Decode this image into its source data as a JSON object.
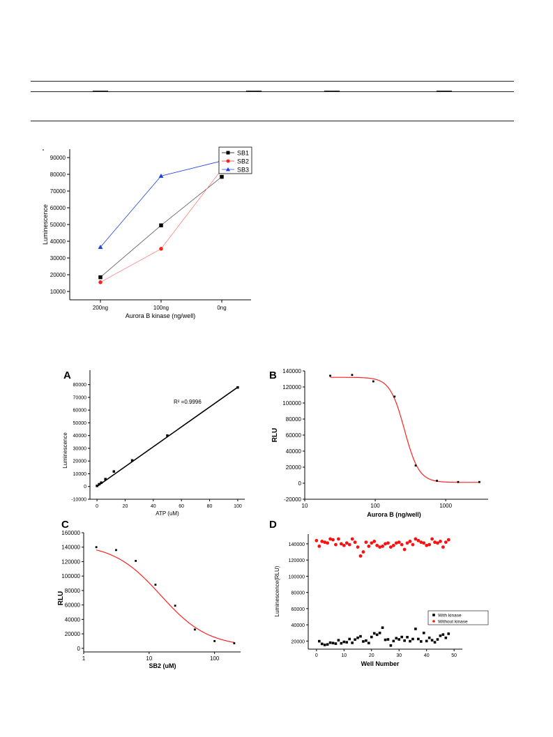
{
  "chart_data": [
    {
      "id": "aurora",
      "type": "line",
      "title": "",
      "xlabel": "Aurora B kinase (ng/well)",
      "ylabel": "Luminescence",
      "categories": [
        "200ng",
        "100ng",
        "0ng"
      ],
      "ylim": [
        5000,
        95000
      ],
      "yticks": [
        10000,
        20000,
        30000,
        40000,
        50000,
        60000,
        70000,
        80000,
        90000
      ],
      "legend": "top-right",
      "series": [
        {
          "name": "SB1",
          "color": "#000000",
          "marker": "square",
          "values": [
            18500,
            49500,
            78500
          ]
        },
        {
          "name": "SB2",
          "color": "#ff2020",
          "marker": "circle",
          "values": [
            15500,
            35500,
            83000
          ]
        },
        {
          "name": "SB3",
          "color": "#1f3fe6",
          "marker": "triangle",
          "values": [
            36500,
            79000,
            88000
          ]
        }
      ]
    },
    {
      "id": "A",
      "panel": "A",
      "type": "scatter",
      "xlabel": "ATP (uM)",
      "ylabel": "Luminescence",
      "xlim": [
        -5,
        105
      ],
      "ylim": [
        -10000,
        82000
      ],
      "xticks": [
        0,
        20,
        40,
        60,
        80,
        100
      ],
      "yticks": [
        -10000,
        0,
        10000,
        20000,
        30000,
        40000,
        50000,
        60000,
        70000,
        80000
      ],
      "annotation": "R² =0.9996",
      "fit": {
        "type": "linear",
        "x": [
          0,
          100
        ],
        "y": [
          0,
          78000
        ]
      },
      "points": {
        "x": [
          0,
          1.5,
          3,
          6,
          12,
          25,
          50,
          100
        ],
        "y": [
          500,
          1800,
          3000,
          5800,
          11800,
          20500,
          40000,
          77800
        ]
      }
    },
    {
      "id": "B",
      "panel": "B",
      "type": "scatter",
      "xlabel": "Aurora B (ng/well)",
      "ylabel": "RLU",
      "xscale": "log",
      "xlim": [
        10,
        4000
      ],
      "ylim": [
        -20000,
        140000
      ],
      "xticks": [
        10,
        100,
        1000
      ],
      "yticks": [
        -20000,
        0,
        20000,
        40000,
        60000,
        80000,
        100000,
        120000,
        140000
      ],
      "ytick_labels": [
        "-20000",
        "0",
        "20000",
        "40000",
        "60000",
        "80000",
        "100000",
        "120000",
        "140000"
      ],
      "fit": {
        "type": "sigmoid",
        "top": 132000,
        "bottom": 1000,
        "ec50": 260,
        "hill": 4.2
      },
      "points": {
        "x": [
          23,
          47,
          94,
          188,
          375,
          750,
          1500,
          3000
        ],
        "y": [
          134000,
          135000,
          127000,
          108000,
          22000,
          3000,
          1500,
          1500
        ]
      }
    },
    {
      "id": "C",
      "panel": "C",
      "type": "scatter",
      "xlabel": "SB2 (uM)",
      "ylabel": "RLU",
      "xscale": "log",
      "xlim": [
        1,
        250
      ],
      "ylim": [
        -5000,
        160000
      ],
      "xticks": [
        1,
        10,
        100
      ],
      "yticks": [
        0,
        20000,
        40000,
        60000,
        80000,
        100000,
        120000,
        140000,
        160000
      ],
      "fit": {
        "type": "sigmoid",
        "top": 145000,
        "bottom": 2000,
        "ec50": 15,
        "hill": 1.2
      },
      "points": {
        "x": [
          1.56,
          3.13,
          6.25,
          12.5,
          25,
          50,
          100,
          200
        ],
        "y": [
          140000,
          136000,
          121000,
          88000,
          59000,
          26000,
          10000,
          7000
        ]
      }
    },
    {
      "id": "D",
      "panel": "D",
      "type": "scatter",
      "xlabel": "Well Number",
      "ylabel": "Luminescence(RLU)",
      "xlim": [
        -3,
        53
      ],
      "ylim": [
        10000,
        152000
      ],
      "xticks": [
        0,
        10,
        20,
        30,
        40,
        50
      ],
      "yticks": [
        20000,
        40000,
        60000,
        80000,
        100000,
        120000,
        140000
      ],
      "legend": "right",
      "series": [
        {
          "name": "With kinase",
          "color": "#000000",
          "marker": "square",
          "values": [
            19800,
            16500,
            15200,
            15800,
            18000,
            17500,
            16800,
            21000,
            17200,
            19000,
            18500,
            22500,
            17800,
            21800,
            24000,
            25800,
            19500,
            20500,
            17500,
            25000,
            29500,
            27800,
            30000,
            36500,
            21500,
            22000,
            14500,
            20000,
            23500,
            22000,
            25000,
            20500,
            24800,
            19800,
            22500,
            35000,
            22500,
            19500,
            30000,
            20000,
            24000,
            21000,
            18500,
            22000,
            26500,
            28000,
            24000,
            29000
          ]
        },
        {
          "name": "Without kinase",
          "color": "#ff1010",
          "marker": "circle",
          "values": [
            144000,
            137000,
            143000,
            142000,
            141000,
            146000,
            145000,
            139000,
            146000,
            140000,
            138000,
            141000,
            139000,
            146000,
            142000,
            136000,
            125000,
            130000,
            142000,
            137000,
            141000,
            143000,
            138000,
            136000,
            137000,
            140000,
            141000,
            136000,
            138000,
            141000,
            142000,
            139000,
            133000,
            141000,
            143000,
            139000,
            146000,
            144000,
            142000,
            141000,
            138000,
            139000,
            146000,
            142000,
            141000,
            143000,
            136000,
            142000,
            145000
          ]
        }
      ]
    }
  ]
}
